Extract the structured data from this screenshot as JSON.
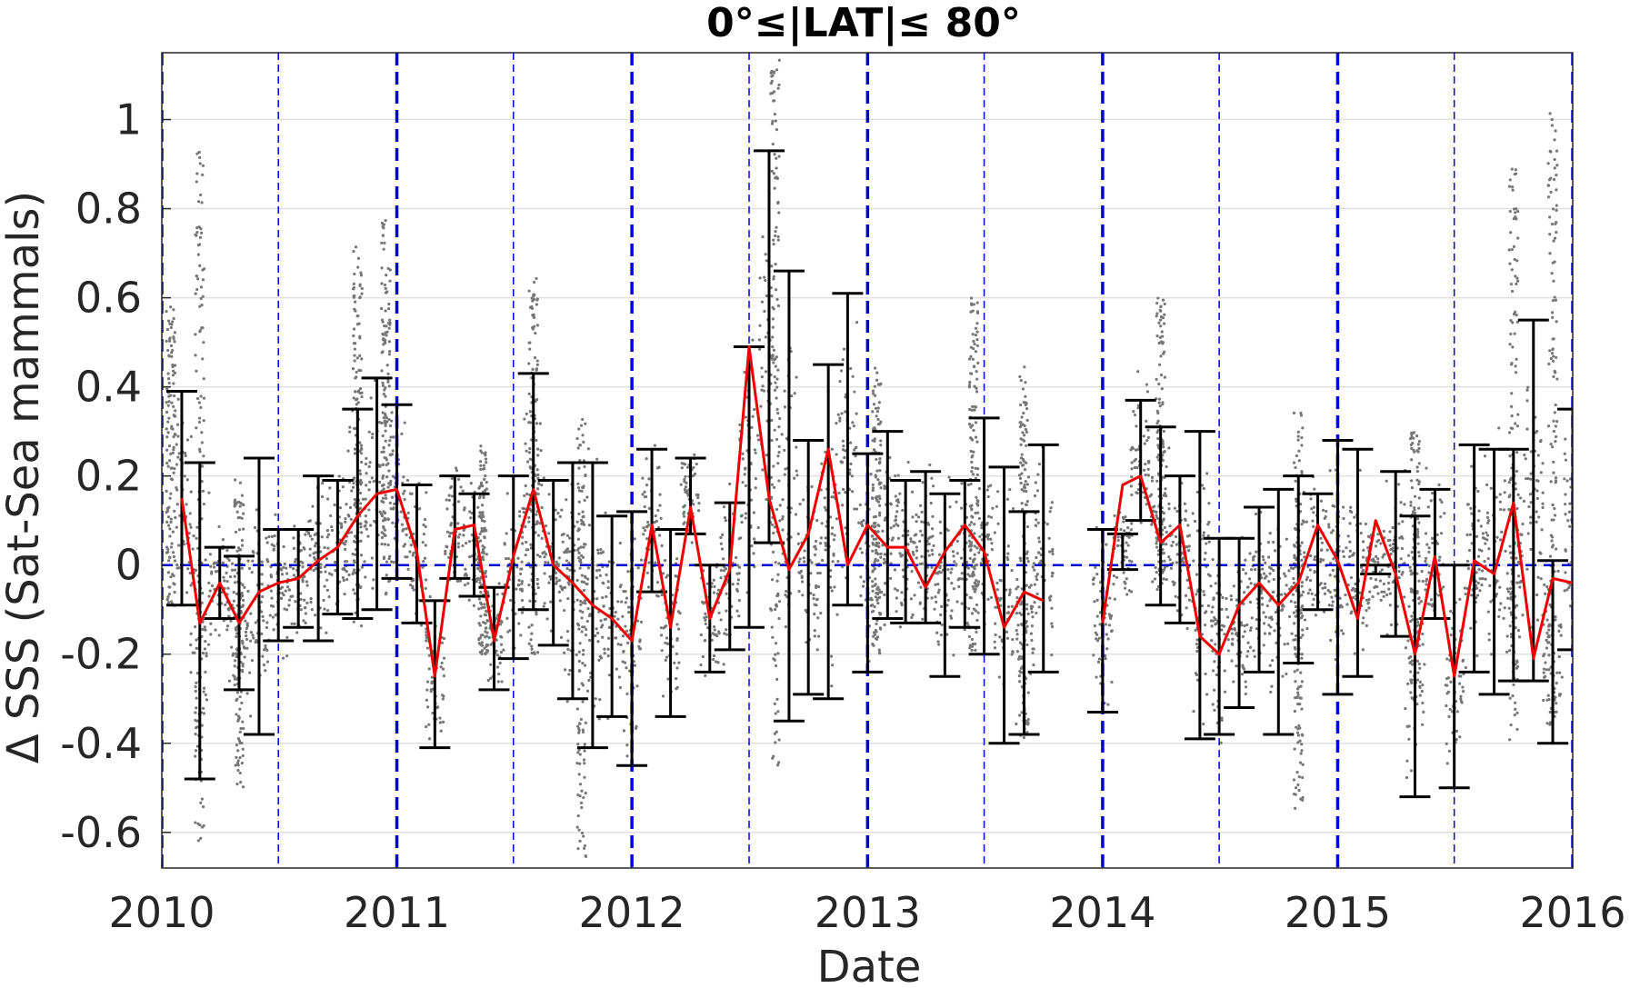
{
  "chart_data": {
    "type": "scatter",
    "title": "0°≤|LAT|≤ 80°",
    "xlabel": "Date",
    "ylabel": "Δ SSS (Sat-Sea mammals)",
    "xlim": [
      "2010-01-01",
      "2016-01-01"
    ],
    "ylim": [
      -0.68,
      1.15
    ],
    "grid": "horizontal",
    "x_ticks": [
      "2010",
      "2011",
      "2012",
      "2013",
      "2014",
      "2015",
      "2016"
    ],
    "y_ticks": [
      "-0.6",
      "-0.4",
      "-0.2",
      "0",
      "0.2",
      "0.4",
      "0.6",
      "0.8",
      "1"
    ],
    "reference_line": {
      "y": 0,
      "style": "dashed",
      "color": "#0000dd"
    },
    "year_boundaries": [
      "2010-01-01",
      "2011-01-01",
      "2012-01-01",
      "2013-01-01",
      "2014-01-01",
      "2015-01-01",
      "2016-01-01"
    ],
    "mid_year_lines": [
      "2010-07-01",
      "2011-07-01",
      "2012-07-01",
      "2013-07-01",
      "2014-07-01",
      "2015-07-01"
    ],
    "colors": {
      "mean": "#ee0000",
      "errorbar": "#000000",
      "points": "#777777",
      "guides": "#0000dd",
      "grid": "#e0e0e0"
    },
    "series": [
      {
        "kind": "monthly_mean_with_errorbars",
        "x": [
          "2010-02-01",
          "2010-03-01",
          "2010-04-01",
          "2010-05-01",
          "2010-06-01",
          "2010-07-01",
          "2010-08-01",
          "2010-09-01",
          "2010-10-01",
          "2010-11-01",
          "2010-12-01",
          "2011-01-01",
          "2011-02-01",
          "2011-03-01",
          "2011-04-01",
          "2011-05-01",
          "2011-06-01",
          "2011-07-01",
          "2011-08-01",
          "2011-09-01",
          "2011-10-01",
          "2011-11-01",
          "2011-12-01",
          "2012-01-01",
          "2012-02-01",
          "2012-03-01",
          "2012-04-01",
          "2012-05-01",
          "2012-06-01",
          "2012-07-01",
          "2012-08-01",
          "2012-09-01",
          "2012-10-01",
          "2012-11-01",
          "2012-12-01",
          "2013-01-01",
          "2013-02-01",
          "2013-03-01",
          "2013-04-01",
          "2013-05-01",
          "2013-06-01",
          "2013-07-01",
          "2013-08-01",
          "2013-09-01",
          "2013-10-01",
          "2014-01-01",
          "2014-02-01",
          "2014-03-01",
          "2014-04-01",
          "2014-05-01",
          "2014-06-01",
          "2014-07-01",
          "2014-08-01",
          "2014-09-01",
          "2014-10-01",
          "2014-11-01",
          "2014-12-01",
          "2015-01-01",
          "2015-02-01",
          "2015-03-01",
          "2015-04-01",
          "2015-05-01",
          "2015-06-01",
          "2015-07-01",
          "2015-08-01",
          "2015-09-01",
          "2015-10-01",
          "2015-11-01",
          "2015-12-01",
          "2016-01-01"
        ],
        "mean": [
          0.15,
          -0.13,
          -0.04,
          -0.13,
          -0.06,
          -0.04,
          -0.03,
          0.01,
          0.04,
          0.11,
          0.16,
          0.17,
          0.03,
          -0.25,
          0.08,
          0.09,
          -0.17,
          0.02,
          0.17,
          0.0,
          -0.04,
          -0.09,
          -0.12,
          -0.17,
          0.09,
          -0.14,
          0.13,
          -0.12,
          -0.01,
          0.49,
          0.15,
          -0.01,
          0.07,
          0.26,
          0.0,
          0.09,
          0.04,
          0.04,
          -0.05,
          0.03,
          0.09,
          0.03,
          -0.14,
          -0.06,
          -0.08,
          -0.13,
          0.18,
          0.2,
          0.05,
          0.09,
          -0.16,
          -0.2,
          -0.09,
          -0.04,
          -0.09,
          -0.04,
          0.09,
          0.01,
          -0.12,
          0.1,
          -0.02,
          -0.2,
          0.02,
          -0.25,
          0.01,
          -0.02,
          0.14,
          -0.21,
          -0.03,
          -0.04
        ],
        "lower": [
          -0.09,
          -0.48,
          -0.12,
          -0.28,
          -0.38,
          -0.17,
          -0.14,
          -0.17,
          -0.11,
          -0.12,
          -0.1,
          -0.03,
          -0.13,
          -0.41,
          -0.03,
          -0.07,
          -0.28,
          -0.21,
          -0.1,
          -0.18,
          -0.3,
          -0.41,
          -0.34,
          -0.45,
          -0.06,
          -0.34,
          0.07,
          -0.24,
          -0.19,
          -0.14,
          0.05,
          -0.35,
          -0.29,
          -0.3,
          -0.09,
          -0.24,
          -0.12,
          -0.13,
          -0.13,
          -0.25,
          -0.14,
          -0.2,
          -0.4,
          -0.38,
          -0.24,
          -0.33,
          -0.01,
          0.1,
          -0.09,
          -0.13,
          -0.39,
          -0.38,
          -0.32,
          -0.24,
          -0.38,
          -0.22,
          -0.1,
          -0.29,
          -0.25,
          -0.02,
          -0.16,
          -0.52,
          -0.12,
          -0.5,
          -0.24,
          -0.29,
          -0.26,
          -0.26,
          -0.4,
          -0.19
        ],
        "upper": [
          0.39,
          0.23,
          0.04,
          0.02,
          0.24,
          0.08,
          0.08,
          0.2,
          0.19,
          0.35,
          0.42,
          0.36,
          0.18,
          -0.08,
          0.2,
          0.16,
          -0.05,
          0.2,
          0.43,
          0.19,
          0.23,
          0.23,
          0.11,
          0.12,
          0.26,
          0.08,
          0.24,
          0.0,
          0.14,
          0.49,
          0.93,
          0.66,
          0.28,
          0.45,
          0.61,
          0.25,
          0.3,
          0.19,
          0.21,
          0.16,
          0.19,
          0.33,
          0.22,
          0.12,
          0.27,
          0.08,
          0.07,
          0.37,
          0.31,
          0.2,
          0.3,
          0.06,
          0.06,
          0.13,
          0.17,
          0.2,
          0.16,
          0.28,
          0.26,
          0.0,
          0.21,
          0.11,
          0.17,
          0.0,
          0.27,
          0.26,
          0.26,
          0.55,
          0.01,
          0.35
        ]
      },
      {
        "kind": "individual_matchups",
        "description_points": "scatter cloud of individual daily differences",
        "clusters": [
          {
            "x": "2010-01-15",
            "y_range": [
              -0.1,
              0.58
            ]
          },
          {
            "x": "2010-03-01",
            "y_range": [
              -0.62,
              0.95
            ]
          },
          {
            "x": "2010-05-01",
            "y_range": [
              -0.5,
              0.2
            ]
          },
          {
            "x": "2010-11-01",
            "y_range": [
              -0.15,
              0.75
            ]
          },
          {
            "x": "2010-12-15",
            "y_range": [
              -0.1,
              0.78
            ]
          },
          {
            "x": "2011-05-15",
            "y_range": [
              -0.2,
              0.27
            ]
          },
          {
            "x": "2011-08-01",
            "y_range": [
              -0.2,
              0.65
            ]
          },
          {
            "x": "2011-10-15",
            "y_range": [
              -0.66,
              0.35
            ]
          },
          {
            "x": "2012-08-10",
            "y_range": [
              -0.45,
              1.15
            ]
          },
          {
            "x": "2013-01-15",
            "y_range": [
              -0.2,
              0.45
            ]
          },
          {
            "x": "2013-06-15",
            "y_range": [
              -0.2,
              0.62
            ]
          },
          {
            "x": "2013-09-01",
            "y_range": [
              -0.4,
              0.45
            ]
          },
          {
            "x": "2014-04-01",
            "y_range": [
              -0.05,
              0.6
            ]
          },
          {
            "x": "2014-11-01",
            "y_range": [
              -0.55,
              0.35
            ]
          },
          {
            "x": "2015-05-01",
            "y_range": [
              -0.3,
              0.3
            ]
          },
          {
            "x": "2015-10-01",
            "y_range": [
              -0.4,
              0.9
            ]
          },
          {
            "x": "2015-12-01",
            "y_range": [
              -0.35,
              1.05
            ]
          }
        ]
      }
    ]
  }
}
